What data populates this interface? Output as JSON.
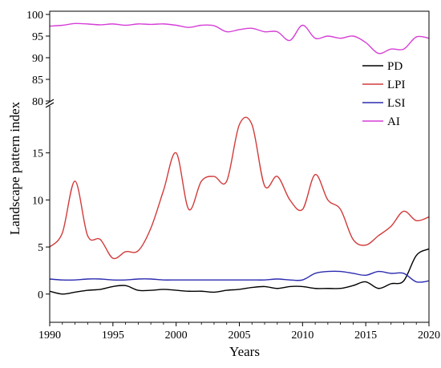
{
  "chart_data": {
    "type": "line",
    "title": "",
    "xlabel": "Years",
    "ylabel": "Landscape pattern index",
    "xlim": [
      1990,
      2020
    ],
    "x_ticks": [
      "1990",
      "1995",
      "2000",
      "2005",
      "2010",
      "2015",
      "2020"
    ],
    "y_axis_break": true,
    "y_upper_range": [
      80,
      100
    ],
    "y_upper_ticks": [
      "80",
      "85",
      "90",
      "95",
      "100"
    ],
    "y_lower_range": [
      -3,
      20
    ],
    "y_lower_ticks": [
      "0",
      "5",
      "10",
      "15"
    ],
    "grid": false,
    "legend_position": "right",
    "series": [
      {
        "name": "PD",
        "color": "#000000",
        "panel": "lower",
        "x": [
          1990,
          1991,
          1992,
          1993,
          1994,
          1995,
          1996,
          1997,
          1998,
          1999,
          2000,
          2001,
          2002,
          2003,
          2004,
          2005,
          2006,
          2007,
          2008,
          2009,
          2010,
          2011,
          2012,
          2013,
          2014,
          2015,
          2016,
          2017,
          2018,
          2019,
          2020
        ],
        "values": [
          0.3,
          0.0,
          0.2,
          0.4,
          0.5,
          0.8,
          0.9,
          0.4,
          0.4,
          0.5,
          0.4,
          0.3,
          0.3,
          0.2,
          0.4,
          0.5,
          0.7,
          0.8,
          0.6,
          0.8,
          0.8,
          0.6,
          0.6,
          0.6,
          0.9,
          1.3,
          0.6,
          1.1,
          1.4,
          4.1,
          4.8
        ]
      },
      {
        "name": "LPI",
        "color": "#d23b3b",
        "panel": "lower",
        "x": [
          1990,
          1991,
          1992,
          1993,
          1994,
          1995,
          1996,
          1997,
          1998,
          1999,
          2000,
          2001,
          2002,
          2003,
          2004,
          2005,
          2006,
          2007,
          2008,
          2009,
          2010,
          2011,
          2012,
          2013,
          2014,
          2015,
          2016,
          2017,
          2018,
          2019,
          2020
        ],
        "values": [
          5.0,
          6.5,
          12.0,
          6.2,
          5.8,
          3.8,
          4.5,
          4.6,
          7.0,
          11.0,
          15.0,
          9.0,
          12.0,
          12.5,
          12.0,
          18.0,
          18.0,
          11.5,
          12.5,
          10.0,
          9.0,
          12.7,
          10.0,
          9.0,
          5.8,
          5.2,
          6.2,
          7.2,
          8.8,
          7.8,
          8.2
        ]
      },
      {
        "name": "LSI",
        "color": "#2b2bb0",
        "panel": "lower",
        "x": [
          1990,
          1991,
          1992,
          1993,
          1994,
          1995,
          1996,
          1997,
          1998,
          1999,
          2000,
          2001,
          2002,
          2003,
          2004,
          2005,
          2006,
          2007,
          2008,
          2009,
          2010,
          2011,
          2012,
          2013,
          2014,
          2015,
          2016,
          2017,
          2018,
          2019,
          2020
        ],
        "values": [
          1.6,
          1.5,
          1.5,
          1.6,
          1.6,
          1.5,
          1.5,
          1.6,
          1.6,
          1.5,
          1.5,
          1.5,
          1.5,
          1.5,
          1.5,
          1.5,
          1.5,
          1.5,
          1.6,
          1.5,
          1.5,
          2.2,
          2.4,
          2.4,
          2.2,
          2.0,
          2.4,
          2.2,
          2.2,
          1.3,
          1.4
        ]
      },
      {
        "name": "AI",
        "color": "#d63fd6",
        "panel": "upper",
        "x": [
          1990,
          1991,
          1992,
          1993,
          1994,
          1995,
          1996,
          1997,
          1998,
          1999,
          2000,
          2001,
          2002,
          2003,
          2004,
          2005,
          2006,
          2007,
          2008,
          2009,
          2010,
          2011,
          2012,
          2013,
          2014,
          2015,
          2016,
          2017,
          2018,
          2019,
          2020
        ],
        "values": [
          97.3,
          97.5,
          97.9,
          97.8,
          97.6,
          97.8,
          97.5,
          97.8,
          97.7,
          97.8,
          97.5,
          97.0,
          97.5,
          97.4,
          96.0,
          96.5,
          96.8,
          96.0,
          96.0,
          94.0,
          97.5,
          94.5,
          95.0,
          94.5,
          95.0,
          93.5,
          91.0,
          92.0,
          92.0,
          94.8,
          94.5
        ]
      }
    ]
  }
}
